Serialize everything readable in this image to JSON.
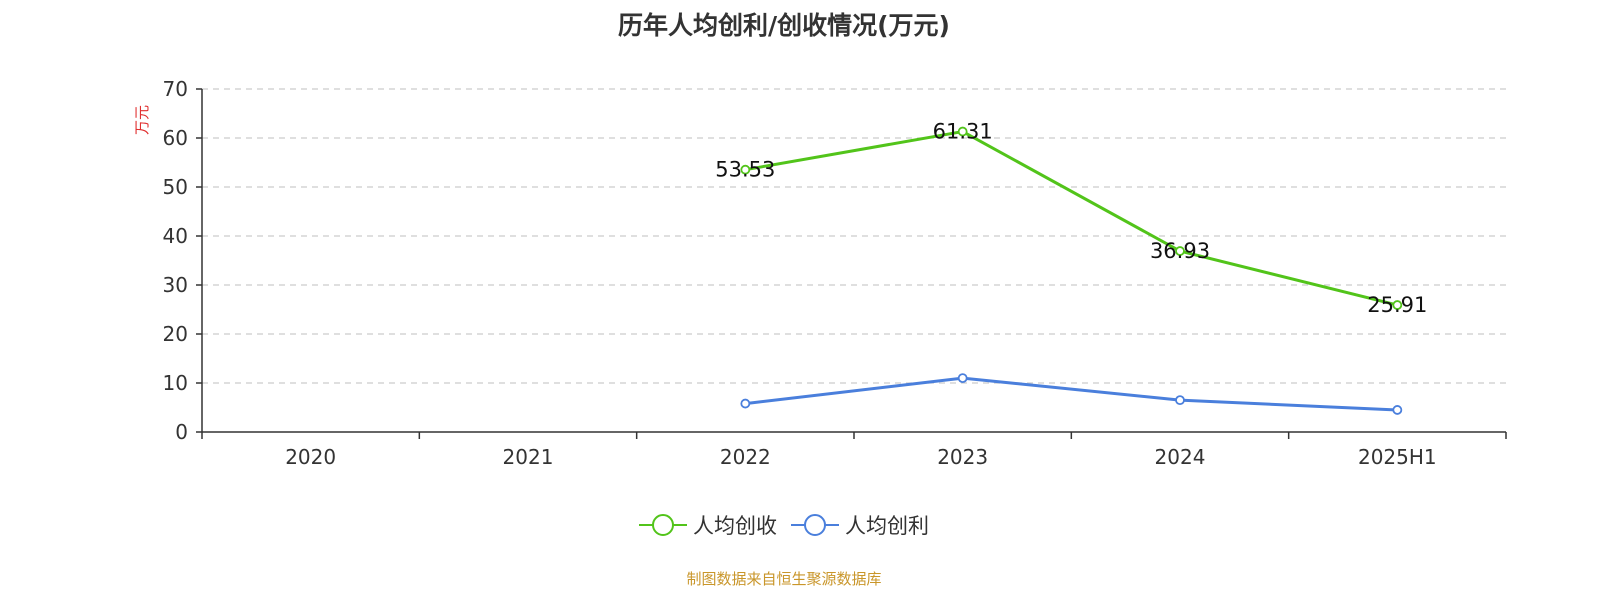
{
  "chart_data": {
    "type": "line",
    "title": "历年人均创利/创收情况(万元)",
    "ylabel": "万元",
    "xlabel": "",
    "categories": [
      "2020",
      "2021",
      "2022",
      "2023",
      "2024",
      "2025H1"
    ],
    "ylim": [
      0,
      70
    ],
    "yticks": [
      0,
      10,
      20,
      30,
      40,
      50,
      60,
      70
    ],
    "grid": true,
    "legend_position": "bottom",
    "series": [
      {
        "name": "人均创收",
        "color": "#52c41a",
        "values": [
          null,
          null,
          53.53,
          61.31,
          36.93,
          25.91
        ],
        "show_labels": true
      },
      {
        "name": "人均创利",
        "color": "#4a7fdc",
        "values": [
          null,
          null,
          5.8,
          11.0,
          6.5,
          4.5
        ],
        "show_labels": false
      }
    ],
    "source_note": "制图数据来自恒生聚源数据库",
    "colors": {
      "axis": "#333333",
      "grid": "#cccccc",
      "ylabel": "#e03030"
    }
  }
}
